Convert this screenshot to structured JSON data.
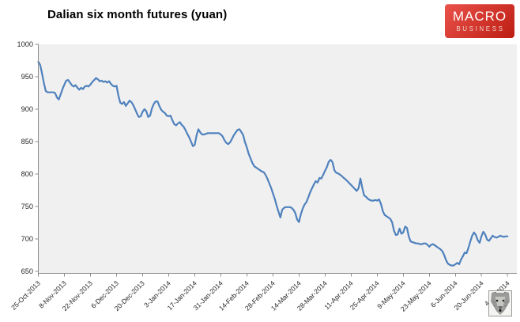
{
  "header": {
    "title": "Dalian six month futures (yuan)"
  },
  "logo": {
    "line1": "MACRO",
    "line2": "BUSINESS",
    "bg_from": "#e9524a",
    "bg_to": "#bd1d12",
    "line1_color": "#ffffff",
    "line2_color": "#f2d2ce"
  },
  "footer_icon": "wolf-icon",
  "chart_data": {
    "type": "line",
    "title": "Dalian six month futures (yuan)",
    "xlabel": "",
    "ylabel": "",
    "ylim": [
      650,
      1000
    ],
    "y_ticks": [
      1000,
      950,
      900,
      850,
      800,
      750,
      700,
      650
    ],
    "x_tick_labels": [
      "25-Oct-2013",
      "8-Nov-2013",
      "22-Nov-2013",
      "6-Dec-2013",
      "20-Dec-2013",
      "3-Jan-2014",
      "17-Jan-2014",
      "31-Jan-2014",
      "14-Feb-2014",
      "28-Feb-2014",
      "14-Mar-2014",
      "28-Mar-2014",
      "11-Apr-2014",
      "25-Apr-2014",
      "9-May-2014",
      "23-May-2014",
      "6-Jun-2014",
      "20-Jun-2014",
      "4-Jul-2014"
    ],
    "x_tick_interval_days": 14,
    "x_domain_days": [
      0,
      257
    ],
    "x_label_rotation_deg": -45,
    "grid": false,
    "legend": "none",
    "plot_bg": "#f0f0f0",
    "axis_color": "#8c8c8c",
    "tick_text_color": "#262626",
    "series": [
      {
        "name": "Dalian six month futures (yuan)",
        "color": "#4f81bd",
        "points": [
          [
            0,
            973
          ],
          [
            1,
            968
          ],
          [
            2,
            955
          ],
          [
            3,
            940
          ],
          [
            4,
            928
          ],
          [
            5,
            926
          ],
          [
            6,
            926
          ],
          [
            7,
            926
          ],
          [
            8,
            926
          ],
          [
            9,
            925
          ],
          [
            10,
            918
          ],
          [
            11,
            915
          ],
          [
            12,
            923
          ],
          [
            13,
            931
          ],
          [
            14,
            938
          ],
          [
            15,
            944
          ],
          [
            16,
            945
          ],
          [
            17,
            941
          ],
          [
            18,
            937
          ],
          [
            19,
            935
          ],
          [
            20,
            937
          ],
          [
            21,
            933
          ],
          [
            22,
            930
          ],
          [
            23,
            933
          ],
          [
            24,
            931
          ],
          [
            25,
            935
          ],
          [
            26,
            936
          ],
          [
            27,
            935
          ],
          [
            28,
            938
          ],
          [
            29,
            942
          ],
          [
            30,
            945
          ],
          [
            31,
            948
          ],
          [
            32,
            946
          ],
          [
            33,
            943
          ],
          [
            34,
            944
          ],
          [
            35,
            942
          ],
          [
            36,
            943
          ],
          [
            37,
            941
          ],
          [
            38,
            943
          ],
          [
            39,
            939
          ],
          [
            40,
            936
          ],
          [
            41,
            935
          ],
          [
            42,
            936
          ],
          [
            43,
            921
          ],
          [
            44,
            910
          ],
          [
            45,
            908
          ],
          [
            46,
            911
          ],
          [
            47,
            905
          ],
          [
            48,
            909
          ],
          [
            49,
            913
          ],
          [
            50,
            911
          ],
          [
            51,
            906
          ],
          [
            52,
            900
          ],
          [
            53,
            893
          ],
          [
            54,
            888
          ],
          [
            55,
            889
          ],
          [
            56,
            896
          ],
          [
            57,
            900
          ],
          [
            58,
            897
          ],
          [
            59,
            888
          ],
          [
            60,
            890
          ],
          [
            61,
            901
          ],
          [
            62,
            908
          ],
          [
            63,
            912
          ],
          [
            64,
            912
          ],
          [
            65,
            905
          ],
          [
            66,
            899
          ],
          [
            67,
            896
          ],
          [
            68,
            894
          ],
          [
            69,
            890
          ],
          [
            70,
            889
          ],
          [
            71,
            890
          ],
          [
            72,
            883
          ],
          [
            73,
            877
          ],
          [
            74,
            875
          ],
          [
            75,
            878
          ],
          [
            76,
            880
          ],
          [
            77,
            876
          ],
          [
            78,
            873
          ],
          [
            79,
            868
          ],
          [
            80,
            862
          ],
          [
            81,
            857
          ],
          [
            82,
            850
          ],
          [
            83,
            843
          ],
          [
            84,
            845
          ],
          [
            85,
            860
          ],
          [
            86,
            869
          ],
          [
            87,
            864
          ],
          [
            88,
            861
          ],
          [
            89,
            861
          ],
          [
            90,
            862
          ],
          [
            91,
            863
          ],
          [
            92,
            863
          ],
          [
            93,
            863
          ],
          [
            94,
            863
          ],
          [
            95,
            863
          ],
          [
            96,
            863
          ],
          [
            97,
            863
          ],
          [
            98,
            861
          ],
          [
            99,
            858
          ],
          [
            100,
            852
          ],
          [
            101,
            848
          ],
          [
            102,
            846
          ],
          [
            103,
            849
          ],
          [
            104,
            854
          ],
          [
            105,
            860
          ],
          [
            106,
            864
          ],
          [
            107,
            868
          ],
          [
            108,
            869
          ],
          [
            109,
            865
          ],
          [
            110,
            860
          ],
          [
            111,
            849
          ],
          [
            112,
            841
          ],
          [
            113,
            831
          ],
          [
            114,
            824
          ],
          [
            115,
            817
          ],
          [
            116,
            812
          ],
          [
            117,
            810
          ],
          [
            118,
            808
          ],
          [
            119,
            806
          ],
          [
            120,
            804
          ],
          [
            121,
            803
          ],
          [
            122,
            799
          ],
          [
            123,
            793
          ],
          [
            124,
            786
          ],
          [
            125,
            779
          ],
          [
            126,
            770
          ],
          [
            127,
            762
          ],
          [
            128,
            751
          ],
          [
            129,
            742
          ],
          [
            130,
            733
          ],
          [
            131,
            745
          ],
          [
            132,
            748
          ],
          [
            133,
            749
          ],
          [
            134,
            749
          ],
          [
            135,
            749
          ],
          [
            136,
            748
          ],
          [
            137,
            745
          ],
          [
            138,
            740
          ],
          [
            139,
            730
          ],
          [
            140,
            726
          ],
          [
            141,
            738
          ],
          [
            142,
            747
          ],
          [
            143,
            753
          ],
          [
            144,
            757
          ],
          [
            145,
            764
          ],
          [
            146,
            772
          ],
          [
            147,
            778
          ],
          [
            148,
            784
          ],
          [
            149,
            789
          ],
          [
            150,
            787
          ],
          [
            151,
            794
          ],
          [
            152,
            793
          ],
          [
            153,
            799
          ],
          [
            154,
            805
          ],
          [
            155,
            811
          ],
          [
            156,
            819
          ],
          [
            157,
            822
          ],
          [
            158,
            818
          ],
          [
            159,
            806
          ],
          [
            160,
            802
          ],
          [
            161,
            801
          ],
          [
            162,
            799
          ],
          [
            163,
            797
          ],
          [
            164,
            794
          ],
          [
            165,
            792
          ],
          [
            166,
            789
          ],
          [
            167,
            786
          ],
          [
            168,
            783
          ],
          [
            169,
            780
          ],
          [
            170,
            777
          ],
          [
            171,
            774
          ],
          [
            172,
            778
          ],
          [
            173,
            793
          ],
          [
            174,
            779
          ],
          [
            175,
            767
          ],
          [
            176,
            765
          ],
          [
            177,
            762
          ],
          [
            178,
            760
          ],
          [
            179,
            759
          ],
          [
            180,
            759
          ],
          [
            181,
            760
          ],
          [
            182,
            759
          ],
          [
            183,
            761
          ],
          [
            184,
            754
          ],
          [
            185,
            743
          ],
          [
            186,
            737
          ],
          [
            187,
            735
          ],
          [
            188,
            733
          ],
          [
            189,
            731
          ],
          [
            190,
            726
          ],
          [
            191,
            713
          ],
          [
            192,
            706
          ],
          [
            193,
            707
          ],
          [
            194,
            716
          ],
          [
            195,
            708
          ],
          [
            196,
            710
          ],
          [
            197,
            719
          ],
          [
            198,
            717
          ],
          [
            199,
            703
          ],
          [
            200,
            696
          ],
          [
            201,
            695
          ],
          [
            202,
            694
          ],
          [
            203,
            693
          ],
          [
            204,
            693
          ],
          [
            205,
            692
          ],
          [
            206,
            692
          ],
          [
            207,
            693
          ],
          [
            208,
            693
          ],
          [
            209,
            691
          ],
          [
            210,
            688
          ],
          [
            211,
            691
          ],
          [
            212,
            692
          ],
          [
            213,
            690
          ],
          [
            214,
            688
          ],
          [
            215,
            686
          ],
          [
            216,
            684
          ],
          [
            217,
            681
          ],
          [
            218,
            675
          ],
          [
            219,
            667
          ],
          [
            220,
            662
          ],
          [
            221,
            660
          ],
          [
            222,
            659
          ],
          [
            223,
            659
          ],
          [
            224,
            661
          ],
          [
            225,
            663
          ],
          [
            226,
            661
          ],
          [
            227,
            668
          ],
          [
            228,
            673
          ],
          [
            229,
            679
          ],
          [
            230,
            678
          ],
          [
            231,
            686
          ],
          [
            232,
            696
          ],
          [
            233,
            705
          ],
          [
            234,
            710
          ],
          [
            235,
            706
          ],
          [
            236,
            698
          ],
          [
            237,
            694
          ],
          [
            238,
            704
          ],
          [
            239,
            711
          ],
          [
            240,
            707
          ],
          [
            241,
            699
          ],
          [
            242,
            697
          ],
          [
            243,
            701
          ],
          [
            244,
            705
          ],
          [
            245,
            703
          ],
          [
            246,
            702
          ],
          [
            247,
            703
          ],
          [
            248,
            705
          ],
          [
            249,
            704
          ],
          [
            250,
            703
          ],
          [
            251,
            704
          ],
          [
            252,
            704
          ]
        ]
      }
    ]
  }
}
